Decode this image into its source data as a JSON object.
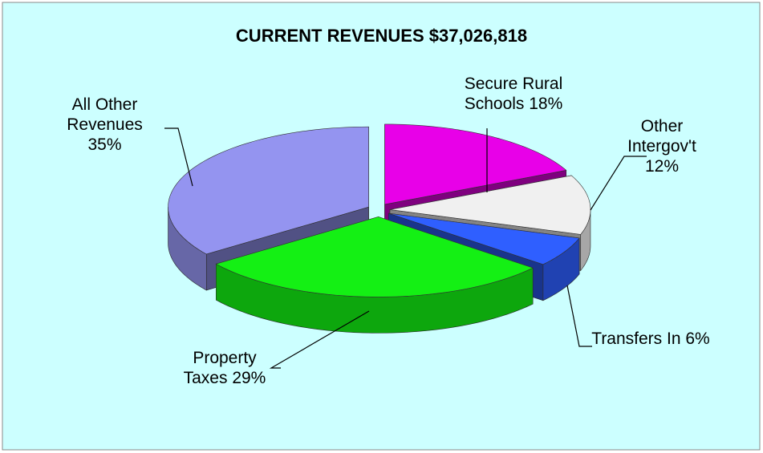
{
  "chart_data": {
    "type": "pie3d",
    "title": "CURRENT REVENUES $37,026,818",
    "labels": [
      "Secure Rural Schools 18%",
      "Other Intergov't 12%",
      "Transfers In 6%",
      "Property Taxes 29%",
      "All Other Revenues 35%"
    ],
    "values": [
      18,
      12,
      6,
      29,
      35
    ],
    "colors": [
      "#e800e8",
      "#f0f0f0",
      "#2f5fff",
      "#14f014",
      "#9494f0"
    ]
  }
}
